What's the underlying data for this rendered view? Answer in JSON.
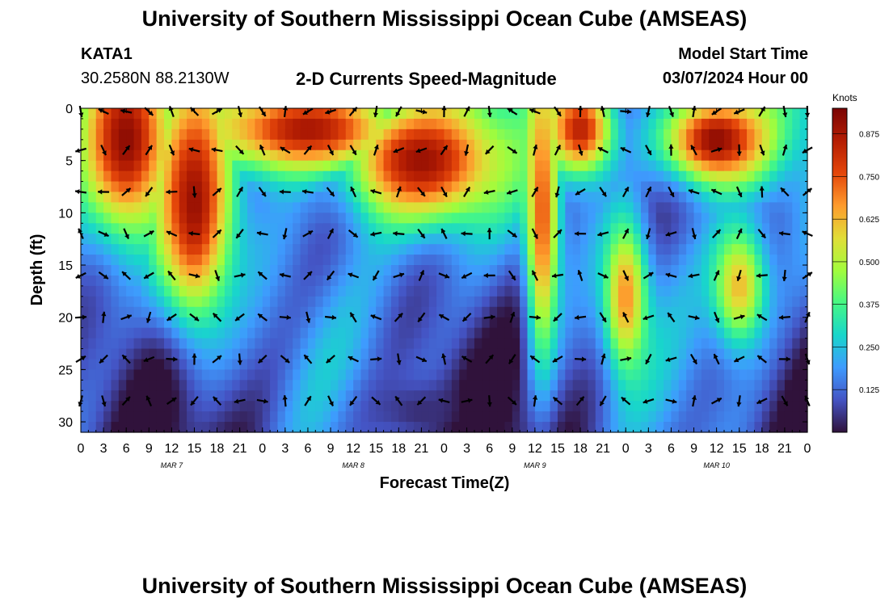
{
  "header": {
    "title": "University of Southern Mississippi Ocean Cube (AMSEAS)",
    "station_id": "KATA1",
    "station_coords": "30.2580N  88.2130W",
    "subtitle": "2-D Currents Speed-Magnitude",
    "model_label": "Model Start Time",
    "model_time": "03/07/2024 Hour 00"
  },
  "footer": {
    "title": "University of Southern Mississippi Ocean Cube (AMSEAS)"
  },
  "chart_data": {
    "type": "heatmap",
    "title": "2-D Currents Speed-Magnitude",
    "xlabel": "Forecast Time(Z)",
    "ylabel": "Depth (ft)",
    "x_range_hours": [
      0,
      96
    ],
    "ylim": [
      0,
      31
    ],
    "y_inverted": true,
    "x_ticks": [
      0,
      3,
      6,
      9,
      12,
      15,
      18,
      21,
      24,
      27,
      30,
      33,
      36,
      39,
      42,
      45,
      48,
      51,
      54,
      57,
      60,
      63,
      66,
      69,
      72,
      75,
      78,
      81,
      84,
      87,
      90,
      93,
      96
    ],
    "x_tick_labels": [
      "0",
      "3",
      "6",
      "9",
      "12",
      "15",
      "18",
      "21",
      "0",
      "3",
      "6",
      "9",
      "12",
      "15",
      "18",
      "21",
      "0",
      "3",
      "6",
      "9",
      "12",
      "15",
      "18",
      "21",
      "0",
      "3",
      "6",
      "9",
      "12",
      "15",
      "18",
      "21",
      "0"
    ],
    "y_ticks": [
      0,
      5,
      10,
      15,
      20,
      25,
      30
    ],
    "y_tick_labels": [
      "0",
      "5",
      "10",
      "15",
      "20",
      "25",
      "30"
    ],
    "date_labels": [
      {
        "text": "MAR 7",
        "hour": 12
      },
      {
        "text": "MAR 8",
        "hour": 36
      },
      {
        "text": "MAR 9",
        "hour": 60
      },
      {
        "text": "MAR 10",
        "hour": 84
      }
    ],
    "colorbar": {
      "unit": "Knots",
      "vmin": 0.0,
      "vmax": 0.95,
      "ticks": [
        0.125,
        0.25,
        0.375,
        0.5,
        0.625,
        0.75,
        0.875
      ],
      "tick_labels": [
        "0.125",
        "0.250",
        "0.375",
        "0.500",
        "0.625",
        "0.750",
        "0.875"
      ]
    },
    "arrow_depths_ft": [
      0,
      4,
      8,
      12,
      16,
      20,
      24,
      28
    ],
    "arrow_hours": [
      0,
      3,
      6,
      9,
      12,
      15,
      18,
      21,
      24,
      27,
      30,
      33,
      36,
      39,
      42,
      45,
      48,
      51,
      54,
      57,
      60,
      63,
      66,
      69,
      72,
      75,
      78,
      81,
      84,
      87,
      90,
      93,
      96
    ],
    "speed_features_knots": [
      {
        "label": "surface-core-mar7",
        "hour": 6,
        "depth_ft": 3,
        "speed": 0.92,
        "hour_spread": 4,
        "depth_spread": 6
      },
      {
        "label": "deep-jet-mar7",
        "hour": 15,
        "depth_ft": 9,
        "speed": 0.9,
        "hour_spread": 3.5,
        "depth_spread": 8
      },
      {
        "label": "surface-band-mar8",
        "hour": 30,
        "depth_ft": 2,
        "speed": 0.88,
        "hour_spread": 9,
        "depth_spread": 3
      },
      {
        "label": "mid-core-mar8",
        "hour": 45,
        "depth_ft": 5,
        "speed": 0.9,
        "hour_spread": 7,
        "depth_spread": 4
      },
      {
        "label": "narrow-jet-mar9",
        "hour": 61,
        "depth_ft": 10,
        "speed": 0.75,
        "hour_spread": 1.5,
        "depth_spread": 10
      },
      {
        "label": "surface-core-mar9",
        "hour": 66,
        "depth_ft": 2,
        "speed": 0.85,
        "hour_spread": 3,
        "depth_spread": 3
      },
      {
        "label": "mid-core-mar10",
        "hour": 72,
        "depth_ft": 18,
        "speed": 0.68,
        "hour_spread": 2,
        "depth_spread": 5
      },
      {
        "label": "surface-core-mar10",
        "hour": 84,
        "depth_ft": 3,
        "speed": 0.92,
        "hour_spread": 5,
        "depth_spread": 3
      },
      {
        "label": "mid-core-late-mar10",
        "hour": 87,
        "depth_ft": 17,
        "speed": 0.62,
        "hour_spread": 2.5,
        "depth_spread": 4
      },
      {
        "label": "deep-minimum-mar8",
        "hour": 45,
        "depth_ft": 29,
        "speed": 0.04,
        "hour_spread": 5,
        "depth_spread": 2
      }
    ]
  }
}
